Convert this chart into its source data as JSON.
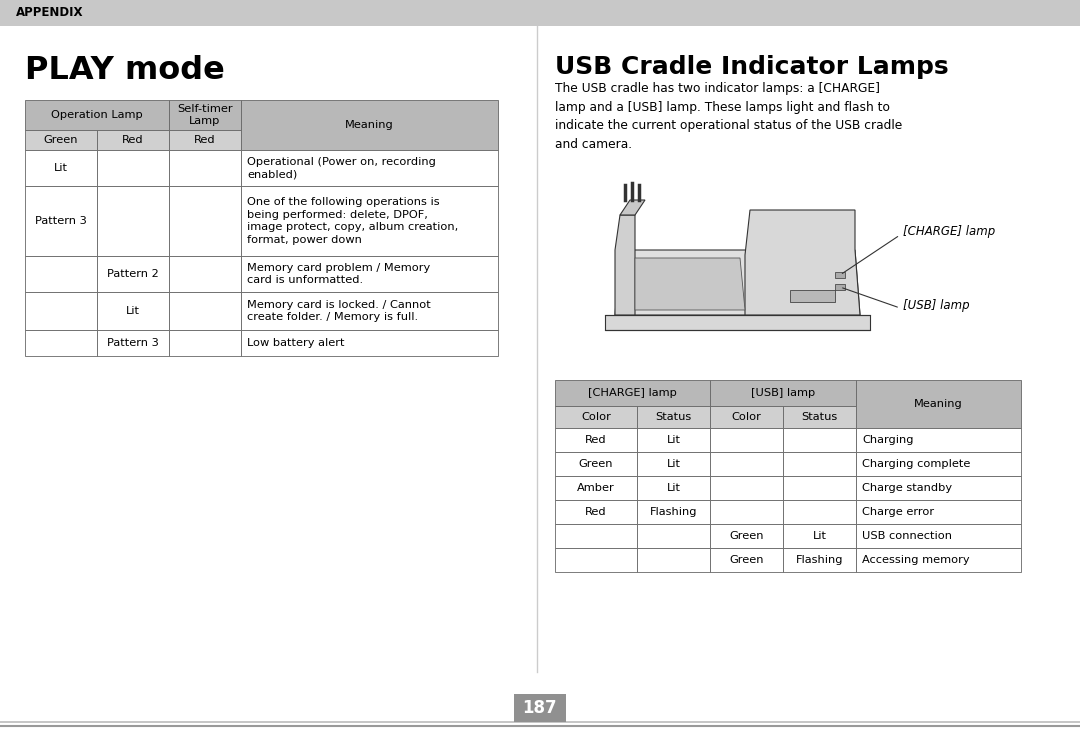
{
  "page_num": "187",
  "header_text": "APPENDIX",
  "header_bg": "#c8c8c8",
  "left_title": "PLAY mode",
  "right_title": "USB Cradle Indicator Lamps",
  "right_para": "The USB cradle has two indicator lamps: a [CHARGE]\nlamp and a [USB] lamp. These lamps light and flash to\nindicate the current operational status of the USB cradle\nand camera.",
  "play_table": {
    "rows": [
      [
        "Lit",
        "",
        "",
        "Operational (Power on, recording\nenabled)"
      ],
      [
        "Pattern 3",
        "",
        "",
        "One of the following operations is\nbeing performed: delete, DPOF,\nimage protect, copy, album creation,\nformat, power down"
      ],
      [
        "",
        "Pattern 2",
        "",
        "Memory card problem / Memory\ncard is unformatted."
      ],
      [
        "",
        "Lit",
        "",
        "Memory card is locked. / Cannot\ncreate folder. / Memory is full."
      ],
      [
        "",
        "Pattern 3",
        "",
        "Low battery alert"
      ]
    ]
  },
  "usb_table": {
    "rows": [
      [
        "Red",
        "Lit",
        "",
        "",
        "Charging"
      ],
      [
        "Green",
        "Lit",
        "",
        "",
        "Charging complete"
      ],
      [
        "Amber",
        "Lit",
        "",
        "",
        "Charge standby"
      ],
      [
        "Red",
        "Flashing",
        "",
        "",
        "Charge error"
      ],
      [
        "",
        "",
        "Green",
        "Lit",
        "USB connection"
      ],
      [
        "",
        "",
        "Green",
        "Flashing",
        "Accessing memory"
      ]
    ]
  },
  "charge_lamp_label": "[CHARGE] lamp",
  "usb_lamp_label": "[USB] lamp",
  "table_header_bg": "#b8b8b8",
  "table_subheader_bg": "#d0d0d0",
  "page_num_bg": "#909090",
  "bg_color": "#ffffff",
  "divider_color": "#aaaaaa"
}
